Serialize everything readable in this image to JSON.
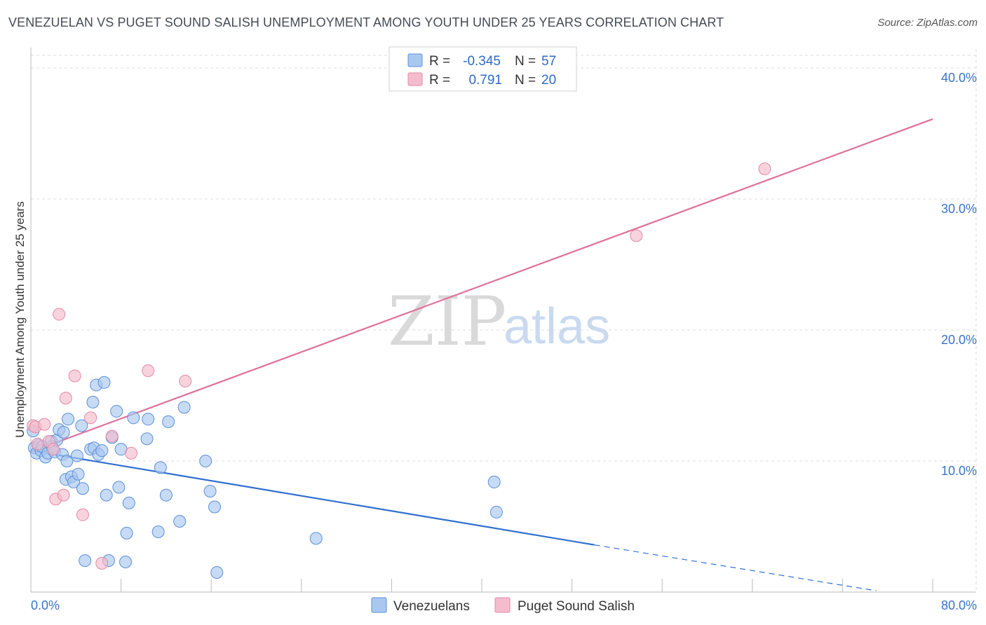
{
  "title": "VENEZUELAN VS PUGET SOUND SALISH UNEMPLOYMENT AMONG YOUTH UNDER 25 YEARS CORRELATION CHART",
  "source": "Source: ZipAtlas.com",
  "watermark": {
    "zip": "ZIP",
    "atlas": "atlas"
  },
  "colors": {
    "blue_fill": "#a9c8f0",
    "blue_stroke": "#5b8fd8",
    "blue_line": "#2f6fd0",
    "pink_fill": "#f5bccd",
    "pink_stroke": "#e08aa6",
    "pink_line": "#e0709a"
  },
  "legend": {
    "rows": [
      {
        "r_label": "R =",
        "r_value": "-0.345",
        "n_label": "N =",
        "n_value": "57"
      },
      {
        "r_label": "R =",
        "r_value": "0.791",
        "n_label": "N =",
        "n_value": "20"
      }
    ]
  },
  "chart_data": {
    "type": "scatter",
    "title": "VENEZUELAN VS PUGET SOUND SALISH UNEMPLOYMENT AMONG YOUTH UNDER 25 YEARS CORRELATION CHART",
    "xlabel": "",
    "ylabel": "Unemployment Among Youth under 25 years",
    "xlim": [
      0,
      80
    ],
    "ylim": [
      0,
      40
    ],
    "x_tick_labels": [
      "0.0%",
      "80.0%"
    ],
    "y_ticks": [
      10,
      20,
      30,
      40
    ],
    "y_tick_labels": [
      "10.0%",
      "20.0%",
      "30.0%",
      "40.0%"
    ],
    "series": [
      {
        "name": "Venezuelans",
        "points": [
          [
            0.2,
            12.3
          ],
          [
            0.3,
            11.0
          ],
          [
            0.5,
            10.6
          ],
          [
            0.7,
            11.2
          ],
          [
            0.9,
            10.8
          ],
          [
            1.0,
            11.1
          ],
          [
            1.3,
            10.3
          ],
          [
            1.5,
            10.6
          ],
          [
            1.8,
            11.5
          ],
          [
            1.9,
            11.1
          ],
          [
            2.1,
            10.7
          ],
          [
            2.3,
            11.6
          ],
          [
            2.5,
            12.4
          ],
          [
            2.9,
            12.2
          ],
          [
            2.8,
            10.5
          ],
          [
            3.2,
            10.0
          ],
          [
            3.1,
            8.6
          ],
          [
            3.3,
            13.2
          ],
          [
            3.6,
            8.8
          ],
          [
            3.8,
            8.4
          ],
          [
            4.1,
            10.4
          ],
          [
            4.2,
            9.0
          ],
          [
            4.5,
            12.7
          ],
          [
            4.6,
            7.9
          ],
          [
            4.8,
            2.4
          ],
          [
            5.3,
            10.9
          ],
          [
            5.5,
            14.5
          ],
          [
            5.6,
            11.0
          ],
          [
            5.8,
            15.8
          ],
          [
            6.0,
            10.5
          ],
          [
            6.3,
            10.8
          ],
          [
            6.5,
            16.0
          ],
          [
            6.7,
            7.4
          ],
          [
            6.9,
            2.4
          ],
          [
            7.2,
            11.8
          ],
          [
            7.6,
            13.8
          ],
          [
            7.8,
            8.0
          ],
          [
            8.0,
            10.9
          ],
          [
            8.4,
            2.3
          ],
          [
            8.5,
            4.5
          ],
          [
            8.7,
            6.8
          ],
          [
            9.1,
            13.3
          ],
          [
            10.3,
            11.7
          ],
          [
            10.4,
            13.2
          ],
          [
            11.3,
            4.6
          ],
          [
            11.5,
            9.5
          ],
          [
            12.0,
            7.4
          ],
          [
            12.2,
            13.0
          ],
          [
            13.2,
            5.4
          ],
          [
            13.6,
            14.1
          ],
          [
            15.5,
            10.0
          ],
          [
            15.9,
            7.7
          ],
          [
            16.3,
            6.5
          ],
          [
            16.5,
            1.5
          ],
          [
            25.3,
            4.1
          ],
          [
            41.1,
            8.4
          ],
          [
            41.3,
            6.1
          ]
        ]
      },
      {
        "name": "Puget Sound Salish",
        "points": [
          [
            0.2,
            12.7
          ],
          [
            0.4,
            12.6
          ],
          [
            0.6,
            11.3
          ],
          [
            1.2,
            12.8
          ],
          [
            1.6,
            11.5
          ],
          [
            2.0,
            10.9
          ],
          [
            2.2,
            7.1
          ],
          [
            2.5,
            21.2
          ],
          [
            2.9,
            7.4
          ],
          [
            3.1,
            14.8
          ],
          [
            3.9,
            16.5
          ],
          [
            4.6,
            5.9
          ],
          [
            5.3,
            13.3
          ],
          [
            6.3,
            2.2
          ],
          [
            7.2,
            11.9
          ],
          [
            8.9,
            10.6
          ],
          [
            10.4,
            16.9
          ],
          [
            13.7,
            16.1
          ],
          [
            53.7,
            27.2
          ],
          [
            65.1,
            32.3
          ]
        ]
      }
    ],
    "trend_lines": [
      {
        "series": "Venezuelans",
        "solid_from": [
          0,
          10.8
        ],
        "solid_to": [
          50,
          3.6
        ],
        "dashed_to": [
          75,
          0.1
        ]
      },
      {
        "series": "Puget Sound Salish",
        "from": [
          0,
          10.7
        ],
        "to": [
          80,
          36.1
        ]
      }
    ],
    "legend_position": "bottom-center"
  }
}
